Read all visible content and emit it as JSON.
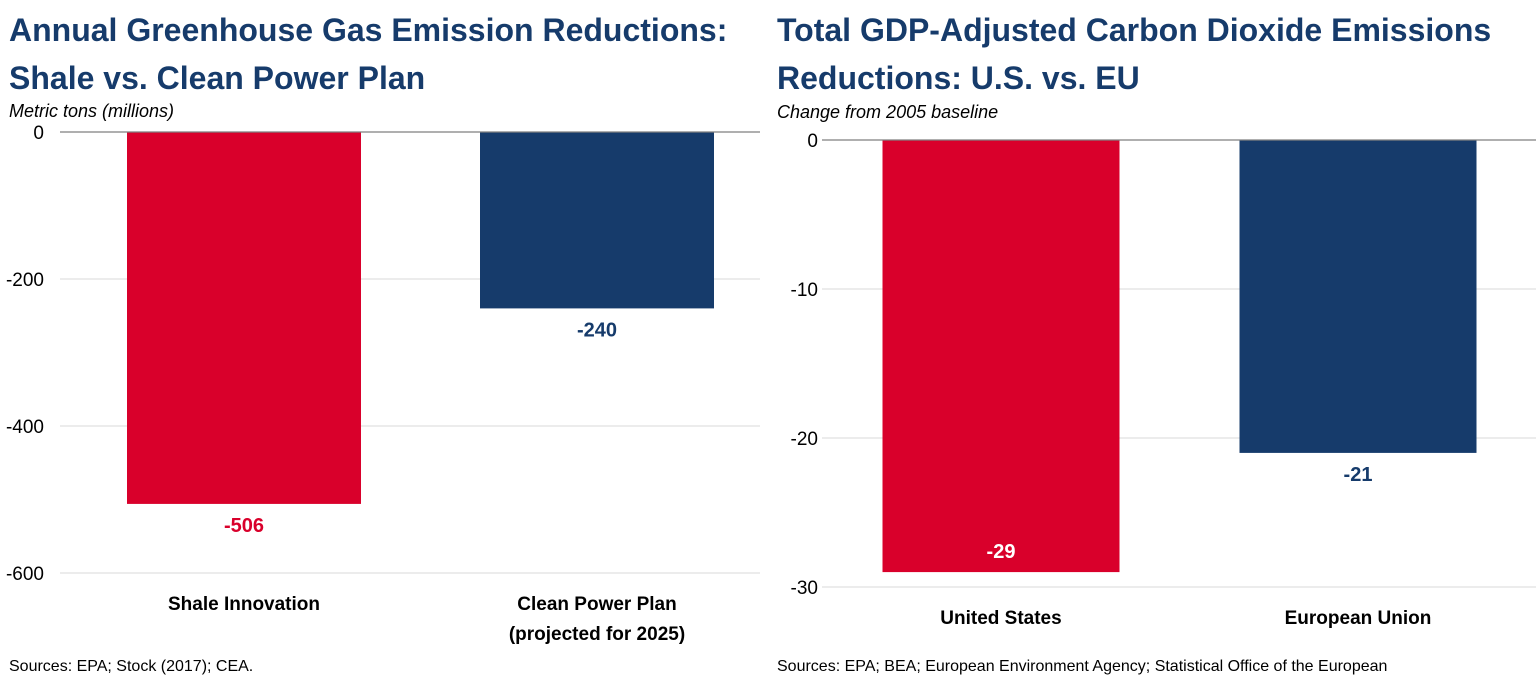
{
  "colors": {
    "title": "#163b6b",
    "red": "#d9002b",
    "navy": "#163b6b",
    "axis": "#000000",
    "grid": "#d9d9d9"
  },
  "chart_data": [
    {
      "type": "bar",
      "title": "Annual Greenhouse Gas Emission Reductions: Shale vs. Clean Power Plan",
      "subtitle": "Metric tons (millions)",
      "source": "Sources: EPA; Stock (2017); CEA.",
      "categories": [
        "Shale Innovation",
        "Clean Power Plan (projected for 2025)"
      ],
      "category_lines": [
        [
          "Shale Innovation"
        ],
        [
          "Clean Power Plan",
          "(projected for 2025)"
        ]
      ],
      "values": [
        -506,
        -240
      ],
      "value_labels": [
        "-506",
        "-240"
      ],
      "bar_colors": [
        "#d9002b",
        "#163b6b"
      ],
      "label_colors": [
        "#d9002b",
        "#163b6b"
      ],
      "yticks": [
        0,
        -200,
        -400,
        -600
      ],
      "ytick_labels": [
        "0",
        "-200",
        "-400",
        "-600"
      ],
      "ylim": [
        -600,
        0
      ],
      "grid": true
    },
    {
      "type": "bar",
      "title": "Total GDP-Adjusted Carbon Dioxide Emissions Reductions: U.S. vs. EU",
      "subtitle": "Change from 2005 baseline",
      "source": "Sources: EPA; BEA; European Environment Agency; Statistical Office of the European",
      "categories": [
        "United States",
        "European Union"
      ],
      "category_lines": [
        [
          "United States"
        ],
        [
          "European Union"
        ]
      ],
      "values": [
        -29,
        -21
      ],
      "value_labels": [
        "-29",
        "-21"
      ],
      "bar_colors": [
        "#d9002b",
        "#163b6b"
      ],
      "label_colors": [
        "#ffffff",
        "#163b6b"
      ],
      "yticks": [
        0,
        -10,
        -20,
        -30
      ],
      "ytick_labels": [
        "0",
        "-10",
        "-20",
        "-30"
      ],
      "ylim": [
        -30,
        0
      ],
      "grid": true
    }
  ]
}
